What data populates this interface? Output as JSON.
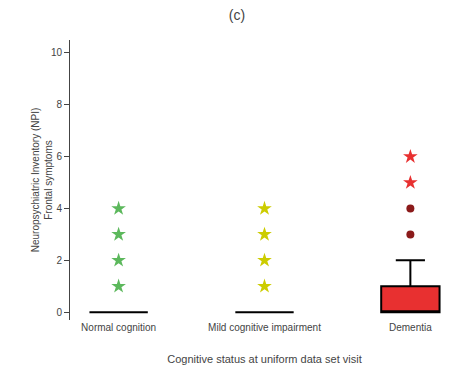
{
  "chart_data": {
    "type": "box",
    "title": "(c)",
    "xlabel": "Cognitive status at uniform data set visit",
    "ylabel": "Neuropsychiatric Inventory (NPI)\nFrontal symptoms",
    "categories": [
      "Normal cognition",
      "Mild cognitive impairment",
      "Dementia"
    ],
    "ylim": [
      -0.3,
      10.5
    ],
    "yticks": [
      0,
      2,
      4,
      6,
      8,
      10
    ],
    "grid": false,
    "groups": [
      {
        "median": 0.0,
        "q1": 0.0,
        "q3": 0.0,
        "whisker_low": 0.0,
        "whisker_high": 0.0,
        "color": "#5cb85c",
        "outliers": [
          {
            "marker": "star",
            "color": "#5cb85c",
            "values": [
              1,
              2,
              3,
              4
            ]
          }
        ]
      },
      {
        "median": 0.0,
        "q1": 0.0,
        "q3": 0.0,
        "whisker_low": 0.0,
        "whisker_high": 0.0,
        "color": "#cccc00",
        "outliers": [
          {
            "marker": "star",
            "color": "#cccc00",
            "values": [
              1,
              2,
              3,
              4
            ]
          }
        ]
      },
      {
        "median": 0.0,
        "q1": 0.0,
        "q3": 1.0,
        "whisker_low": 0.0,
        "whisker_high": 2.0,
        "color": "#e83030",
        "outliers": [
          {
            "marker": "star",
            "color": "#e83030",
            "values": [
              5,
              6
            ]
          },
          {
            "marker": "circle",
            "color": "#8b1a1a",
            "values": [
              3,
              4
            ]
          }
        ]
      }
    ]
  }
}
